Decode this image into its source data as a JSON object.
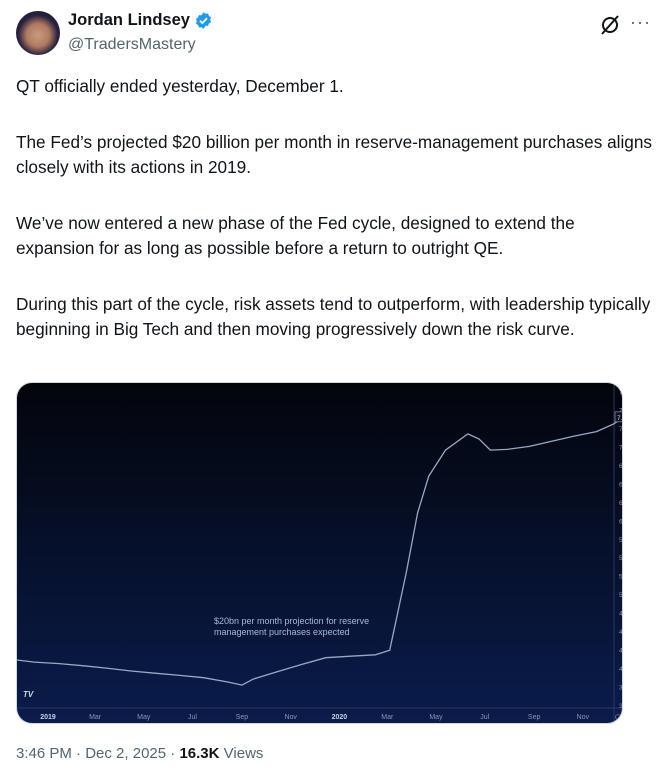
{
  "author": {
    "name": "Jordan Lindsey",
    "handle": "@TradersMastery",
    "verified": true
  },
  "icons": {
    "verified": "verified-badge-icon",
    "grok": "grok-icon",
    "more": "more-icon"
  },
  "colors": {
    "verified": "#1d9bf0",
    "text": "#0f1419",
    "secondary": "#536471",
    "chart_line": "#9aa8c4"
  },
  "tweet": {
    "paragraphs": [
      "QT officially ended yesterday, December 1.",
      "The Fed’s projected $20 billion per month in reserve-management purchases aligns closely with its actions in 2019.",
      "We’ve now entered a new phase of the Fed cycle, designed to extend the expansion for as long as possible before a return to outright QE.",
      "During this part of the cycle, risk assets tend to outperform, with leadership typically beginning in Big Tech and then moving progressively down the risk curve."
    ]
  },
  "footer": {
    "time": "3:46 PM",
    "date": "Dec 2, 2025",
    "views_count": "16.3K",
    "views_label": "Views",
    "sep": "·"
  },
  "chart_data": {
    "type": "line",
    "annotation": "$20bn per month projection for reserve management purchases expected",
    "annotation_lines": [
      "$20bn per month projection for reserve",
      "management purchases expected"
    ],
    "last_value_label": "7.4T",
    "yticks": [
      "7.75T",
      "7.5T",
      "7.25T",
      "7T",
      "6.75T",
      "6.5T",
      "6.25T",
      "6T",
      "5.75T",
      "5.5T",
      "5.25T",
      "5T",
      "4.75T",
      "4.5T",
      "4.25T",
      "4T",
      "3.75T",
      "3.5T"
    ],
    "ytick_values": [
      7.75,
      7.5,
      7.25,
      7,
      6.75,
      6.5,
      6.25,
      6,
      5.75,
      5.5,
      5.25,
      5,
      4.75,
      4.5,
      4.25,
      4,
      3.75,
      3.5
    ],
    "xticks": [
      {
        "label": "2019",
        "date": "2019-01-01",
        "bold": true
      },
      {
        "label": "Mar",
        "date": "2019-03-01"
      },
      {
        "label": "May",
        "date": "2019-05-01"
      },
      {
        "label": "Jul",
        "date": "2019-07-01"
      },
      {
        "label": "Sep",
        "date": "2019-09-01"
      },
      {
        "label": "Nov",
        "date": "2019-11-01"
      },
      {
        "label": "2020",
        "date": "2020-01-01",
        "bold": true
      },
      {
        "label": "Mar",
        "date": "2020-03-01"
      },
      {
        "label": "May",
        "date": "2020-05-01"
      },
      {
        "label": "Jul",
        "date": "2020-07-01"
      },
      {
        "label": "Sep",
        "date": "2020-09-01"
      },
      {
        "label": "Nov",
        "date": "2020-11-01"
      }
    ],
    "ylim": [
      3.5,
      7.75
    ],
    "xlim": [
      "2018-11-15",
      "2020-12-28"
    ],
    "grid": false,
    "series": [
      {
        "x": [
          "2018-11-15",
          "2018-12-15",
          "2019-01-15",
          "2019-02-15",
          "2019-03-15",
          "2019-04-15",
          "2019-05-15",
          "2019-06-15",
          "2019-07-15",
          "2019-08-15",
          "2019-09-01",
          "2019-09-15",
          "2019-10-15",
          "2019-11-15",
          "2019-12-15",
          "2020-01-15",
          "2020-02-15",
          "2020-03-04",
          "2020-03-25",
          "2020-04-08",
          "2020-04-22",
          "2020-05-13",
          "2020-06-10",
          "2020-06-24",
          "2020-07-08",
          "2020-07-29",
          "2020-08-26",
          "2020-09-23",
          "2020-10-21",
          "2020-11-18",
          "2020-12-09",
          "2020-12-23"
        ],
        "y": [
          4.12,
          4.08,
          4.06,
          4.03,
          4.0,
          3.96,
          3.93,
          3.9,
          3.87,
          3.81,
          3.77,
          3.85,
          3.95,
          4.05,
          4.14,
          4.16,
          4.18,
          4.24,
          5.3,
          6.1,
          6.6,
          6.95,
          7.17,
          7.1,
          6.95,
          6.96,
          7.0,
          7.07,
          7.14,
          7.2,
          7.3,
          7.4
        ]
      }
    ]
  }
}
